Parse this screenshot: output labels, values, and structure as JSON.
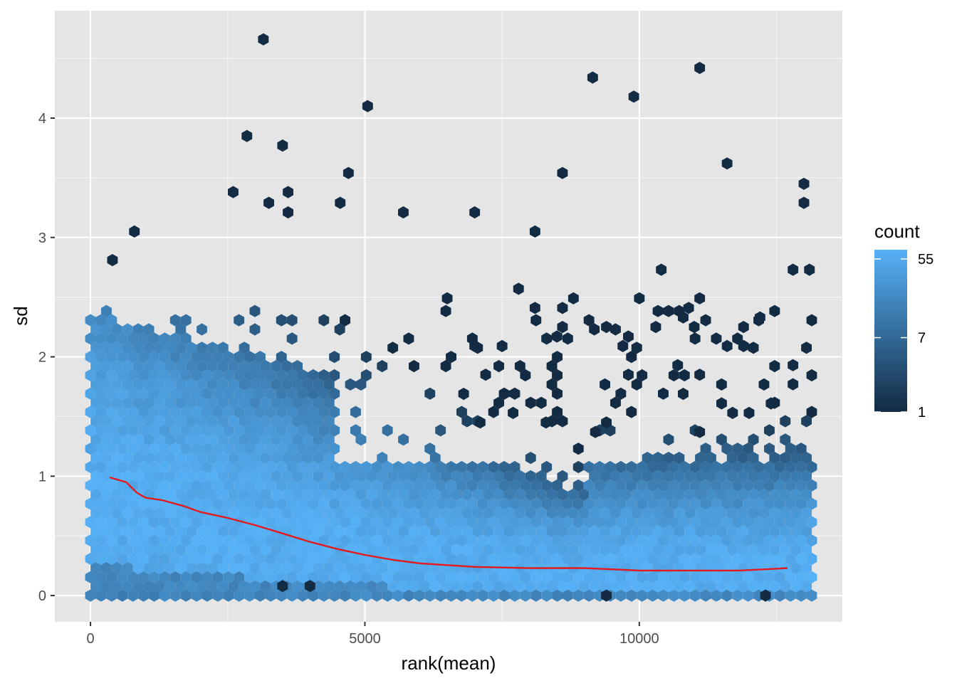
{
  "chart_data": {
    "type": "hexbin",
    "xlabel": "rank(mean)",
    "ylabel": "sd",
    "xlim": [
      -650,
      13700
    ],
    "ylim": [
      -0.22,
      4.9
    ],
    "x_ticks": [
      0,
      5000,
      10000
    ],
    "x_tick_labels": [
      "0",
      "5000",
      "10000"
    ],
    "y_ticks": [
      0,
      1,
      2,
      3,
      4
    ],
    "y_tick_labels": [
      "0",
      "1",
      "2",
      "3",
      "4"
    ],
    "grid": true,
    "colors": {
      "panel_background": "#e5e5e5",
      "grid_major": "#ffffff",
      "count_low": "#132b43",
      "count_high": "#56b1f7",
      "trend_line": "#e41a1c"
    },
    "legend": {
      "title": "count",
      "placement": "right",
      "scale": "log",
      "breaks": [
        1,
        7,
        55
      ],
      "break_labels": [
        "1",
        "7",
        "55"
      ],
      "range": [
        1,
        70
      ]
    },
    "trend_line": {
      "x": [
        350,
        650,
        850,
        1000,
        1300,
        1700,
        2000,
        2500,
        3000,
        3500,
        4000,
        4500,
        5000,
        5500,
        6000,
        7000,
        8000,
        9000,
        10000,
        10500,
        11000,
        11800,
        12300,
        12700
      ],
      "y": [
        0.99,
        0.95,
        0.86,
        0.82,
        0.8,
        0.75,
        0.7,
        0.65,
        0.59,
        0.52,
        0.45,
        0.39,
        0.34,
        0.3,
        0.27,
        0.24,
        0.23,
        0.23,
        0.21,
        0.21,
        0.21,
        0.21,
        0.22,
        0.23
      ]
    },
    "outlier_points": [
      {
        "x": 3150,
        "y": 4.66
      },
      {
        "x": 11100,
        "y": 4.42
      },
      {
        "x": 9150,
        "y": 4.34
      },
      {
        "x": 9900,
        "y": 4.18
      },
      {
        "x": 5050,
        "y": 4.1
      },
      {
        "x": 2850,
        "y": 3.85
      },
      {
        "x": 3500,
        "y": 3.77
      },
      {
        "x": 11600,
        "y": 3.62
      },
      {
        "x": 4700,
        "y": 3.54
      },
      {
        "x": 8600,
        "y": 3.54
      },
      {
        "x": 13000,
        "y": 3.45
      },
      {
        "x": 2600,
        "y": 3.38
      },
      {
        "x": 3600,
        "y": 3.38
      },
      {
        "x": 3250,
        "y": 3.29
      },
      {
        "x": 4550,
        "y": 3.29
      },
      {
        "x": 13000,
        "y": 3.29
      },
      {
        "x": 5700,
        "y": 3.21
      },
      {
        "x": 7000,
        "y": 3.21
      },
      {
        "x": 3600,
        "y": 3.21
      },
      {
        "x": 8100,
        "y": 3.05
      },
      {
        "x": 800,
        "y": 3.05
      },
      {
        "x": 400,
        "y": 2.81
      },
      {
        "x": 10400,
        "y": 2.73
      },
      {
        "x": 12800,
        "y": 2.73
      },
      {
        "x": 13100,
        "y": 2.73
      },
      {
        "x": 7800,
        "y": 2.57
      },
      {
        "x": 10000,
        "y": 2.49
      },
      {
        "x": 8800,
        "y": 2.49
      },
      {
        "x": 11100,
        "y": 2.49
      },
      {
        "x": 6500,
        "y": 2.49
      },
      {
        "x": 8100,
        "y": 2.41
      },
      {
        "x": 8600,
        "y": 2.41
      },
      {
        "x": 10900,
        "y": 2.41
      },
      {
        "x": 10800,
        "y": 2.33
      },
      {
        "x": 12200,
        "y": 2.33
      },
      {
        "x": 9400,
        "y": 2.25
      },
      {
        "x": 10300,
        "y": 2.25
      },
      {
        "x": 11000,
        "y": 2.25
      },
      {
        "x": 11900,
        "y": 2.25
      },
      {
        "x": 8600,
        "y": 2.25
      },
      {
        "x": 8500,
        "y": 2.17
      },
      {
        "x": 9800,
        "y": 2.17
      },
      {
        "x": 7500,
        "y": 2.09
      },
      {
        "x": 9700,
        "y": 2.09
      },
      {
        "x": 11600,
        "y": 2.09
      },
      {
        "x": 11900,
        "y": 2.09
      },
      {
        "x": 7000,
        "y": 2.09
      },
      {
        "x": 10700,
        "y": 1.93
      },
      {
        "x": 12800,
        "y": 1.93
      },
      {
        "x": 9800,
        "y": 1.85
      },
      {
        "x": 11100,
        "y": 1.85
      },
      {
        "x": 7200,
        "y": 1.85
      },
      {
        "x": 12800,
        "y": 1.77
      },
      {
        "x": 10800,
        "y": 1.69
      },
      {
        "x": 6800,
        "y": 1.69
      },
      {
        "x": 11500,
        "y": 1.61
      },
      {
        "x": 12400,
        "y": 1.61
      },
      {
        "x": 7700,
        "y": 1.53
      },
      {
        "x": 11700,
        "y": 1.53
      },
      {
        "x": 12000,
        "y": 1.53
      },
      {
        "x": 7100,
        "y": 1.45
      },
      {
        "x": 8300,
        "y": 1.45
      },
      {
        "x": 9400,
        "y": 1.45
      },
      {
        "x": 9200,
        "y": 1.37
      },
      {
        "x": 11100,
        "y": 1.37
      },
      {
        "x": 9400,
        "y": 0.0
      },
      {
        "x": 12300,
        "y": 0.0
      },
      {
        "x": 3500,
        "y": 0.08
      },
      {
        "x": 4000,
        "y": 0.08
      }
    ]
  }
}
